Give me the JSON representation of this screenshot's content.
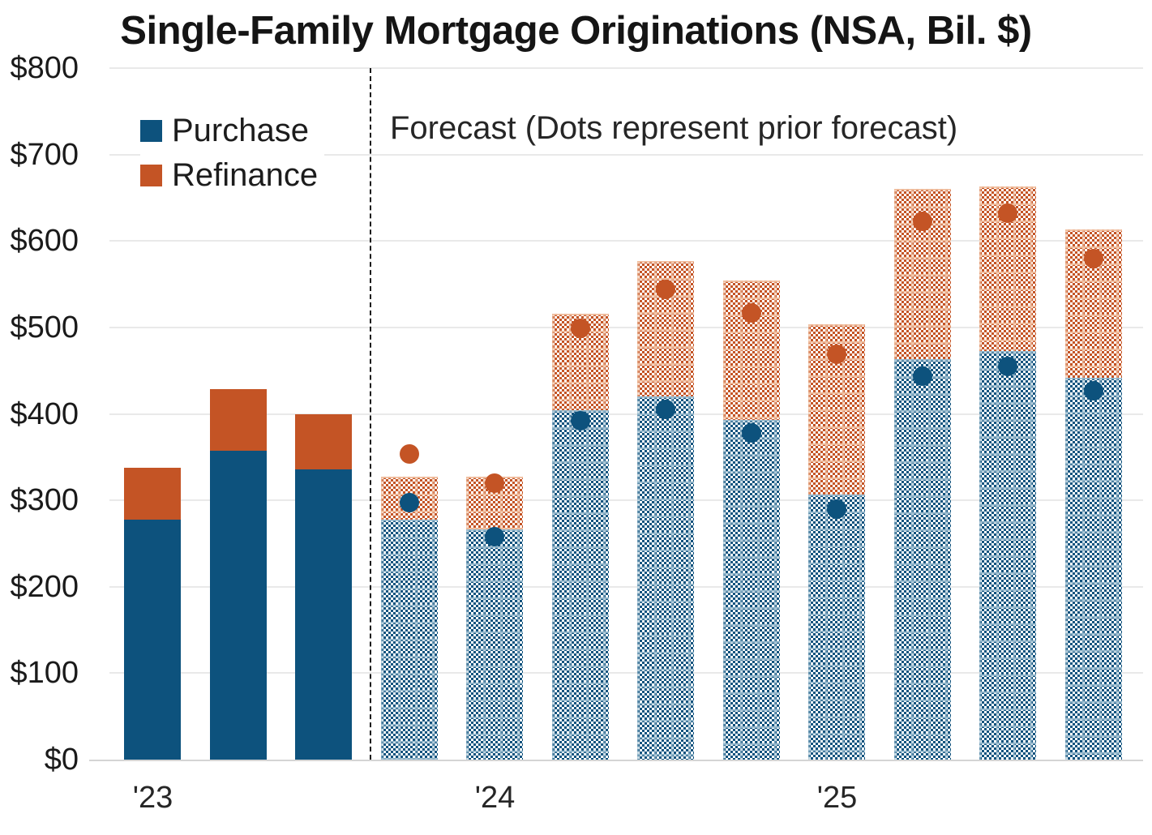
{
  "title": "Single-Family Mortgage Originations (NSA, Bil. $)",
  "forecast_note": "Forecast (Dots represent prior forecast)",
  "legend": [
    {
      "label": "Purchase",
      "color": "#0d527d"
    },
    {
      "label": "Refinance",
      "color": "#c45425"
    }
  ],
  "colors": {
    "purchase": "#0d527d",
    "refinance": "#c45425",
    "gridline": "#e9e9e9",
    "separator": "#1a1a1a"
  },
  "chart_data": {
    "type": "bar",
    "stacked": true,
    "title": "Single-Family Mortgage Originations (NSA, Bil. $)",
    "xlabel": "",
    "ylabel": "",
    "ylim": [
      0,
      800
    ],
    "grid": "horizontal",
    "legend_position": "top-left",
    "ytick_values": [
      0,
      100,
      200,
      300,
      400,
      500,
      600,
      700,
      800
    ],
    "ytick_labels": [
      "$0",
      "$100",
      "$200",
      "$300",
      "$400",
      "$500",
      "$600",
      "$700",
      "$800"
    ],
    "x_year_labels": [
      {
        "label": "'23",
        "bar_index": 0
      },
      {
        "label": "'24",
        "bar_index": 4
      },
      {
        "label": "'25",
        "bar_index": 8
      }
    ],
    "bars_per_year": 4,
    "forecast_start_index": 3,
    "series": [
      {
        "name": "Purchase",
        "values": [
          278,
          357,
          336,
          278,
          266,
          404,
          420,
          393,
          307,
          463,
          473,
          442
        ]
      },
      {
        "name": "Refinance",
        "values": [
          60,
          72,
          64,
          49,
          61,
          112,
          157,
          161,
          197,
          197,
          190,
          171
        ]
      }
    ],
    "totals": [
      338,
      429,
      400,
      327,
      327,
      516,
      577,
      554,
      504,
      660,
      663,
      613
    ],
    "prior_forecast_dots": {
      "purchase": [
        null,
        null,
        null,
        297,
        258,
        392,
        405,
        378,
        290,
        444,
        455,
        427
      ],
      "total": [
        null,
        null,
        null,
        354,
        320,
        499,
        544,
        517,
        469,
        623,
        632,
        580
      ]
    }
  }
}
